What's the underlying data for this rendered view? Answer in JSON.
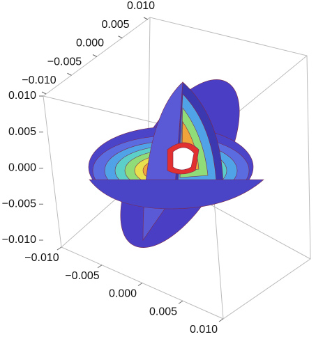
{
  "chart_data": {
    "type": "slice-contour-3d",
    "xlim": [
      -0.01,
      0.01
    ],
    "xticks": [
      {
        "value": -0.01,
        "label": "−0.010"
      },
      {
        "value": -0.005,
        "label": "−0.005"
      },
      {
        "value": 0,
        "label": "0.000"
      },
      {
        "value": 0.005,
        "label": "0.005"
      },
      {
        "value": 0.01,
        "label": "0.010"
      }
    ],
    "ylim": [
      -0.01,
      0.01
    ],
    "yticks": [
      {
        "value": -0.01,
        "label": "−0.010"
      },
      {
        "value": -0.005,
        "label": "−0.005"
      },
      {
        "value": 0,
        "label": "0.000"
      },
      {
        "value": 0.005,
        "label": "0.005"
      },
      {
        "value": 0.01,
        "label": "0.010"
      }
    ],
    "zlim": [
      -0.01,
      0.01
    ],
    "zticks": [
      {
        "value": -0.01,
        "label": "−0.010"
      },
      {
        "value": -0.005,
        "label": "−0.005"
      },
      {
        "value": 0,
        "label": "0.000"
      },
      {
        "value": 0.005,
        "label": "0.005"
      },
      {
        "value": 0.01,
        "label": "0.010"
      }
    ]
  }
}
